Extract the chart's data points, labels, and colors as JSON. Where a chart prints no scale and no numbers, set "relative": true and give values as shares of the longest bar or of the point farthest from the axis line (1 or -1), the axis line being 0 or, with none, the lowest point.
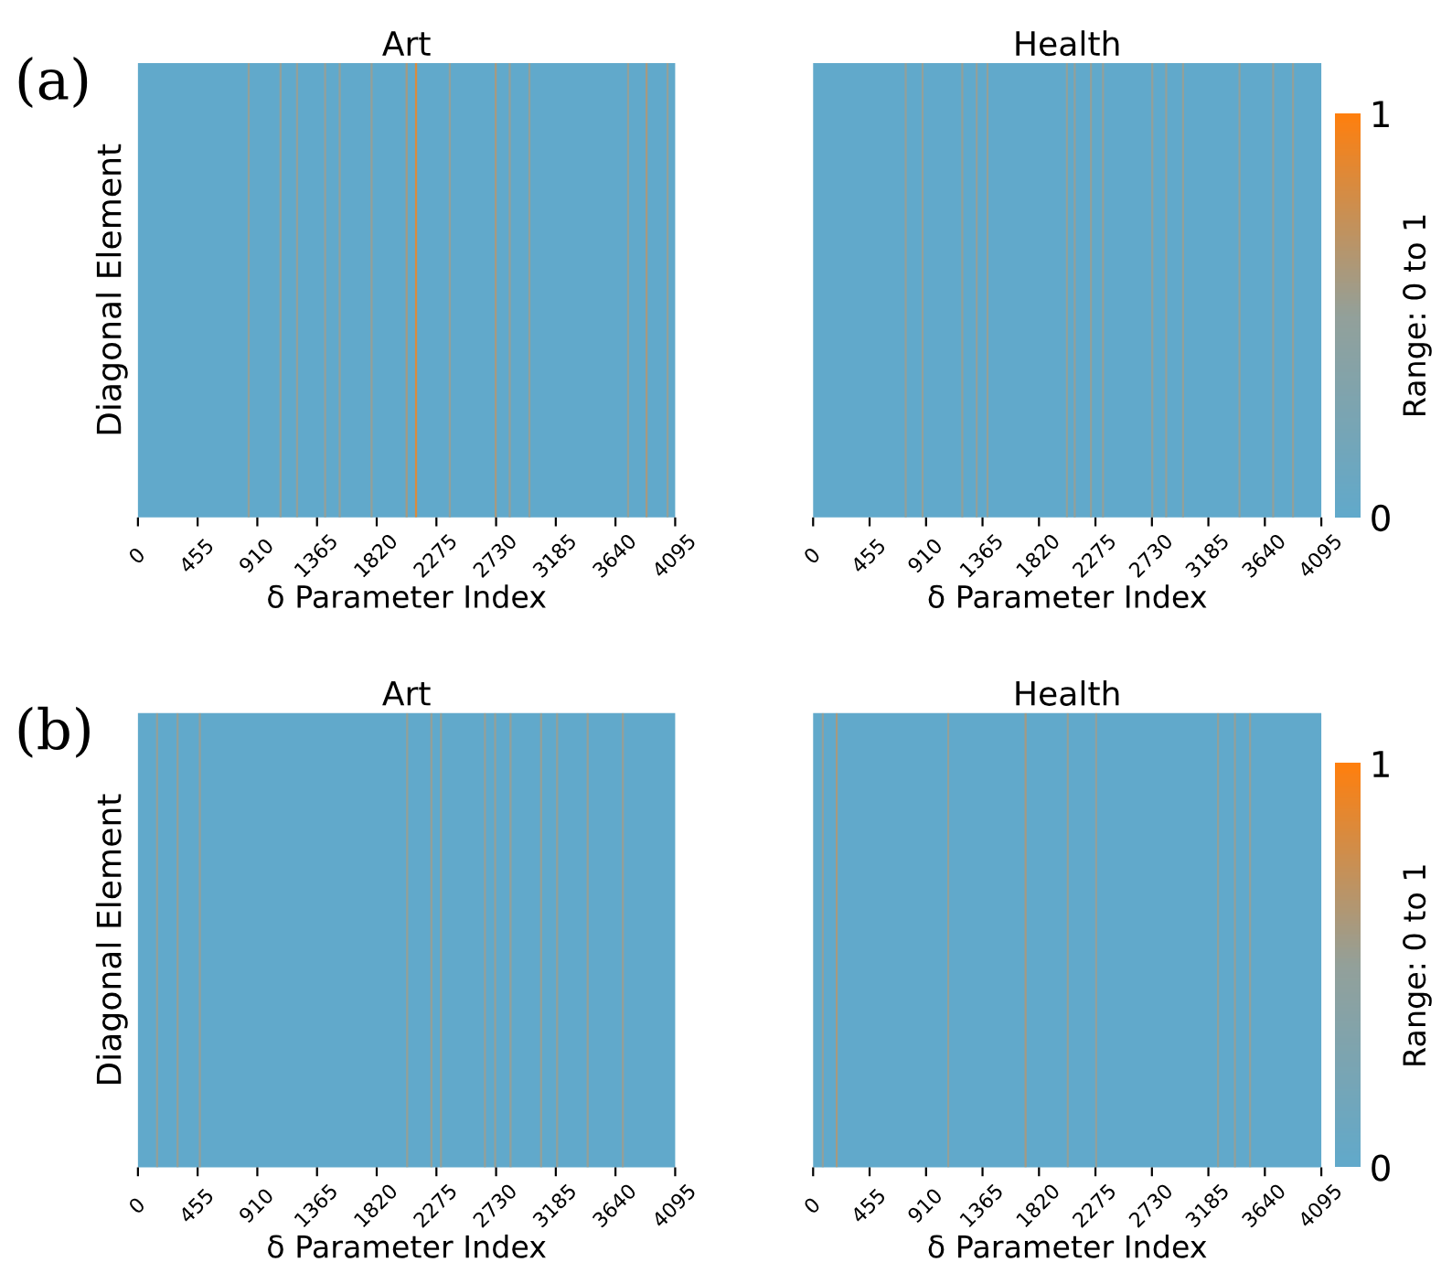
{
  "chart_data": [
    {
      "type": "bar",
      "relative": true,
      "title": "Art",
      "xlabel": "δ Parameter Index",
      "ylabel": "Diagonal Element",
      "annotations": [
        "(a)"
      ],
      "xlim": [
        0,
        4095
      ],
      "xticks": [
        0,
        455,
        910,
        1365,
        1820,
        2275,
        2730,
        3185,
        3640,
        4095
      ],
      "tick_labels": "x",
      "x": [
        844,
        1087,
        1213,
        1427,
        1538,
        1781,
        2048,
        2120,
        2377,
        2727,
        2834,
        2984,
        3736,
        3877,
        4037
      ],
      "values": [
        1,
        1,
        1,
        1,
        1,
        1,
        1,
        1,
        1,
        1,
        1,
        1,
        1,
        1,
        1
      ],
      "colors": [
        "#93a09a",
        "#93a09a",
        "#93a09a",
        "#93a09a",
        "#93a09a",
        "#93a09a",
        "#a59a82",
        "#d98b3e",
        "#93a09a",
        "#a59a82",
        "#93a09a",
        "#93a09a",
        "#93a09a",
        "#a59a82",
        "#93a09a"
      ]
    },
    {
      "type": "bar",
      "relative": true,
      "title": "Health",
      "xlabel": "δ Parameter Index",
      "clabel": "Range: 0 to 1",
      "clim": [
        0,
        1
      ],
      "cticks": [
        0,
        1
      ],
      "xlim": [
        0,
        4095
      ],
      "xticks": [
        0,
        455,
        910,
        1365,
        1820,
        2275,
        2730,
        3185,
        3640,
        4095
      ],
      "tick_labels": "x",
      "x": [
        746,
        882,
        1202,
        1318,
        1405,
        2045,
        2108,
        2239,
        2336,
        2733,
        2845,
        2981,
        3436,
        3707,
        3867
      ],
      "values": [
        1,
        1,
        1,
        1,
        1,
        1,
        1,
        1,
        1,
        1,
        1,
        1,
        1,
        1,
        1
      ],
      "colors": [
        "#93a09a",
        "#93a09a",
        "#93a09a",
        "#93a09a",
        "#93a09a",
        "#93a09a",
        "#93a09a",
        "#93a09a",
        "#93a09a",
        "#93a09a",
        "#93a09a",
        "#93a09a",
        "#93a09a",
        "#93a09a",
        "#93a09a"
      ]
    },
    {
      "type": "bar",
      "relative": true,
      "title": "Art",
      "xlabel": "δ Parameter Index",
      "ylabel": "Diagonal Element",
      "annotations": [
        "(b)"
      ],
      "xlim": [
        0,
        4095
      ],
      "xticks": [
        0,
        455,
        910,
        1365,
        1820,
        2275,
        2730,
        3185,
        3640,
        4095
      ],
      "tick_labels": "x",
      "x": [
        146,
        302,
        472,
        2052,
        2237,
        2310,
        2645,
        2723,
        2840,
        3073,
        3195,
        3428,
        3696
      ],
      "values": [
        1,
        1,
        1,
        1,
        1,
        1,
        1,
        1,
        1,
        1,
        1,
        1,
        1
      ],
      "colors": [
        "#93a09a",
        "#93a09a",
        "#93a09a",
        "#93a09a",
        "#93a09a",
        "#93a09a",
        "#93a09a",
        "#93a09a",
        "#93a09a",
        "#93a09a",
        "#93a09a",
        "#93a09a",
        "#93a09a"
      ]
    },
    {
      "type": "bar",
      "relative": true,
      "title": "Health",
      "xlabel": "δ Parameter Index",
      "clabel": "Range: 0 to 1",
      "clim": [
        0,
        1
      ],
      "cticks": [
        0,
        1
      ],
      "xlim": [
        0,
        4095
      ],
      "xticks": [
        0,
        455,
        910,
        1365,
        1820,
        2275,
        2730,
        3185,
        3640,
        4095
      ],
      "tick_labels": "x",
      "x": [
        78,
        190,
        1089,
        1712,
        2052,
        2281,
        3263,
        3399,
        3521
      ],
      "values": [
        1,
        1,
        1,
        1,
        1,
        1,
        1,
        1,
        1
      ],
      "colors": [
        "#93a09a",
        "#a59a82",
        "#93a09a",
        "#a59a82",
        "#93a09a",
        "#93a09a",
        "#93a09a",
        "#93a09a",
        "#93a09a"
      ]
    }
  ]
}
